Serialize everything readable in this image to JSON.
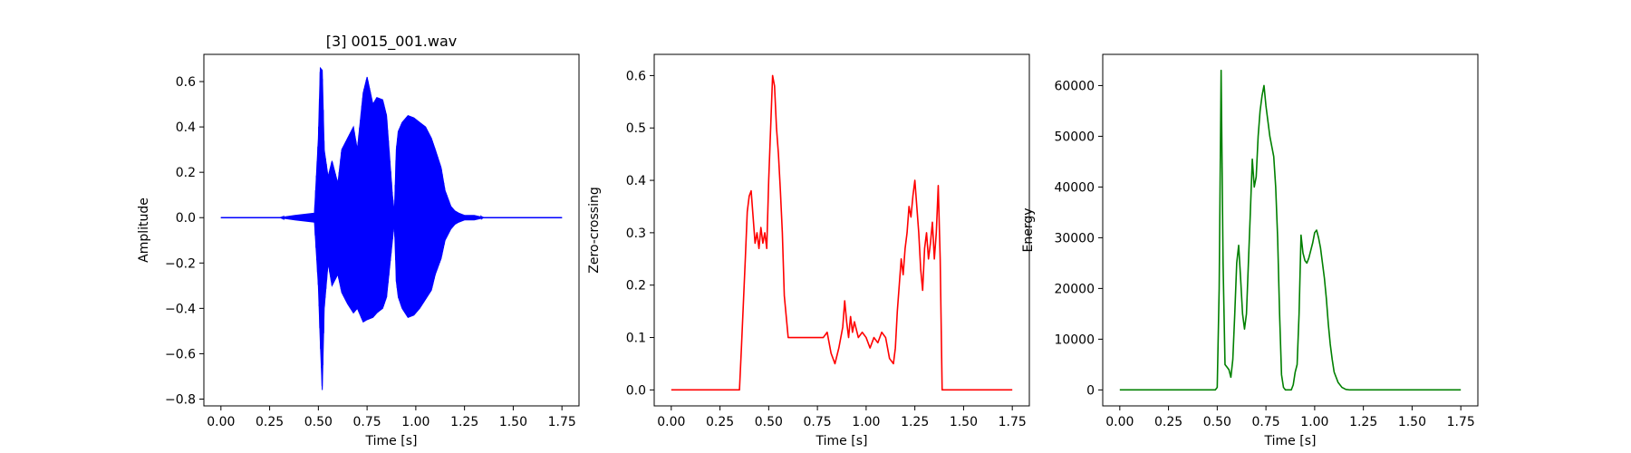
{
  "chart_data": [
    {
      "type": "line",
      "title": "[3] 0015_001.wav",
      "xlabel": "Time [s]",
      "ylabel": "Amplitude",
      "xlim": [
        -0.0875,
        1.8375
      ],
      "ylim": [
        -0.83,
        0.72
      ],
      "xticks": [
        0.0,
        0.25,
        0.5,
        0.75,
        1.0,
        1.25,
        1.5,
        1.75
      ],
      "xtick_labels": [
        "0.00",
        "0.25",
        "0.50",
        "0.75",
        "1.00",
        "1.25",
        "1.50",
        "1.75"
      ],
      "yticks": [
        -0.8,
        -0.6,
        -0.4,
        -0.2,
        0.0,
        0.2,
        0.4,
        0.6
      ],
      "ytick_labels": [
        "−0.8",
        "−0.6",
        "−0.4",
        "−0.2",
        "0.0",
        "0.2",
        "0.4",
        "0.6"
      ],
      "grid": false,
      "color": "#0000ff",
      "series": [
        {
          "style": "waveform",
          "x": [
            0.0,
            0.3,
            0.38,
            0.48,
            0.5,
            0.51,
            0.52,
            0.53,
            0.55,
            0.57,
            0.6,
            0.62,
            0.65,
            0.68,
            0.7,
            0.73,
            0.75,
            0.78,
            0.8,
            0.83,
            0.85,
            0.88,
            0.89,
            0.9,
            0.91,
            0.93,
            0.96,
            0.99,
            1.02,
            1.05,
            1.08,
            1.1,
            1.13,
            1.15,
            1.18,
            1.2,
            1.22,
            1.25,
            1.3,
            1.35,
            1.4,
            1.5,
            1.75
          ],
          "upper": [
            0.0,
            0.0,
            0.01,
            0.02,
            0.35,
            0.66,
            0.65,
            0.3,
            0.18,
            0.25,
            0.15,
            0.3,
            0.35,
            0.4,
            0.3,
            0.55,
            0.62,
            0.5,
            0.53,
            0.52,
            0.45,
            0.1,
            0.02,
            0.3,
            0.38,
            0.42,
            0.45,
            0.44,
            0.42,
            0.4,
            0.35,
            0.3,
            0.22,
            0.12,
            0.05,
            0.03,
            0.02,
            0.01,
            0.01,
            0.0,
            0.0,
            0.0,
            0.0
          ],
          "lower": [
            0.0,
            0.0,
            -0.01,
            -0.02,
            -0.3,
            -0.55,
            -0.76,
            -0.4,
            -0.2,
            -0.3,
            -0.25,
            -0.33,
            -0.38,
            -0.42,
            -0.4,
            -0.46,
            -0.45,
            -0.44,
            -0.42,
            -0.4,
            -0.35,
            -0.1,
            -0.02,
            -0.28,
            -0.35,
            -0.4,
            -0.44,
            -0.43,
            -0.4,
            -0.36,
            -0.32,
            -0.25,
            -0.18,
            -0.1,
            -0.05,
            -0.03,
            -0.02,
            -0.01,
            -0.01,
            0.0,
            0.0,
            0.0,
            0.0
          ]
        }
      ]
    },
    {
      "type": "line",
      "title": "",
      "xlabel": "Time [s]",
      "ylabel": "Zero-crossing",
      "xlim": [
        -0.0875,
        1.8375
      ],
      "ylim": [
        -0.0305,
        0.6405
      ],
      "xticks": [
        0.0,
        0.25,
        0.5,
        0.75,
        1.0,
        1.25,
        1.5,
        1.75
      ],
      "xtick_labels": [
        "0.00",
        "0.25",
        "0.50",
        "0.75",
        "1.00",
        "1.25",
        "1.50",
        "1.75"
      ],
      "yticks": [
        0.0,
        0.1,
        0.2,
        0.3,
        0.4,
        0.5,
        0.6
      ],
      "ytick_labels": [
        "0.0",
        "0.1",
        "0.2",
        "0.3",
        "0.4",
        "0.5",
        "0.6"
      ],
      "grid": false,
      "color": "#ff0000",
      "series": [
        {
          "x": [
            0.0,
            0.35,
            0.36,
            0.38,
            0.39,
            0.4,
            0.41,
            0.42,
            0.43,
            0.44,
            0.45,
            0.46,
            0.47,
            0.48,
            0.49,
            0.5,
            0.51,
            0.52,
            0.53,
            0.54,
            0.55,
            0.56,
            0.57,
            0.58,
            0.6,
            0.62,
            0.64,
            0.66,
            0.7,
            0.75,
            0.78,
            0.8,
            0.82,
            0.84,
            0.86,
            0.88,
            0.89,
            0.9,
            0.91,
            0.92,
            0.93,
            0.94,
            0.96,
            0.98,
            1.0,
            1.02,
            1.04,
            1.06,
            1.08,
            1.1,
            1.12,
            1.14,
            1.15,
            1.16,
            1.17,
            1.18,
            1.19,
            1.2,
            1.21,
            1.22,
            1.23,
            1.24,
            1.25,
            1.26,
            1.27,
            1.28,
            1.29,
            1.3,
            1.31,
            1.32,
            1.33,
            1.34,
            1.35,
            1.36,
            1.37,
            1.38,
            1.39,
            1.75
          ],
          "y": [
            0.0,
            0.0,
            0.08,
            0.25,
            0.34,
            0.37,
            0.38,
            0.33,
            0.28,
            0.3,
            0.27,
            0.31,
            0.28,
            0.3,
            0.27,
            0.4,
            0.5,
            0.6,
            0.58,
            0.5,
            0.45,
            0.38,
            0.3,
            0.18,
            0.1,
            0.1,
            0.1,
            0.1,
            0.1,
            0.1,
            0.1,
            0.11,
            0.07,
            0.05,
            0.08,
            0.12,
            0.17,
            0.13,
            0.1,
            0.14,
            0.11,
            0.13,
            0.1,
            0.11,
            0.1,
            0.08,
            0.1,
            0.09,
            0.11,
            0.1,
            0.06,
            0.05,
            0.08,
            0.15,
            0.2,
            0.25,
            0.22,
            0.27,
            0.3,
            0.35,
            0.33,
            0.37,
            0.4,
            0.35,
            0.3,
            0.23,
            0.19,
            0.27,
            0.3,
            0.25,
            0.28,
            0.32,
            0.25,
            0.3,
            0.39,
            0.25,
            0.0,
            0.0
          ]
        }
      ]
    },
    {
      "type": "line",
      "title": "",
      "xlabel": "Time [s]",
      "ylabel": "Energy",
      "xlim": [
        -0.0875,
        1.8375
      ],
      "ylim": [
        -3150,
        66150
      ],
      "xticks": [
        0.0,
        0.25,
        0.5,
        0.75,
        1.0,
        1.25,
        1.5,
        1.75
      ],
      "xtick_labels": [
        "0.00",
        "0.25",
        "0.50",
        "0.75",
        "1.00",
        "1.25",
        "1.50",
        "1.75"
      ],
      "yticks": [
        0,
        10000,
        20000,
        30000,
        40000,
        50000,
        60000
      ],
      "ytick_labels": [
        "0",
        "10000",
        "20000",
        "30000",
        "40000",
        "50000",
        "60000"
      ],
      "grid": false,
      "color": "#008000",
      "series": [
        {
          "x": [
            0.0,
            0.49,
            0.5,
            0.51,
            0.52,
            0.53,
            0.54,
            0.55,
            0.56,
            0.57,
            0.58,
            0.59,
            0.6,
            0.61,
            0.62,
            0.63,
            0.64,
            0.65,
            0.66,
            0.67,
            0.68,
            0.69,
            0.7,
            0.71,
            0.72,
            0.73,
            0.74,
            0.75,
            0.76,
            0.77,
            0.78,
            0.79,
            0.8,
            0.81,
            0.82,
            0.83,
            0.84,
            0.85,
            0.86,
            0.87,
            0.88,
            0.89,
            0.9,
            0.91,
            0.92,
            0.93,
            0.94,
            0.95,
            0.96,
            0.97,
            0.98,
            0.99,
            1.0,
            1.01,
            1.02,
            1.03,
            1.04,
            1.05,
            1.06,
            1.07,
            1.08,
            1.09,
            1.1,
            1.12,
            1.14,
            1.16,
            1.18,
            1.2,
            1.75
          ],
          "y": [
            0,
            0,
            500,
            20000,
            63000,
            25000,
            5000,
            4500,
            4000,
            2500,
            6000,
            15000,
            25000,
            28500,
            22000,
            15000,
            12000,
            15000,
            25000,
            35000,
            45500,
            40000,
            42000,
            50000,
            55000,
            58000,
            60000,
            56000,
            53000,
            50000,
            48000,
            46000,
            40000,
            30000,
            15000,
            3000,
            500,
            0,
            0,
            0,
            0,
            1000,
            3500,
            5000,
            15000,
            30500,
            27000,
            25500,
            25000,
            26000,
            27500,
            29000,
            31000,
            31500,
            30000,
            28000,
            25000,
            22000,
            18000,
            13000,
            9000,
            6000,
            3500,
            1500,
            500,
            100,
            0,
            0,
            0
          ]
        }
      ]
    }
  ]
}
